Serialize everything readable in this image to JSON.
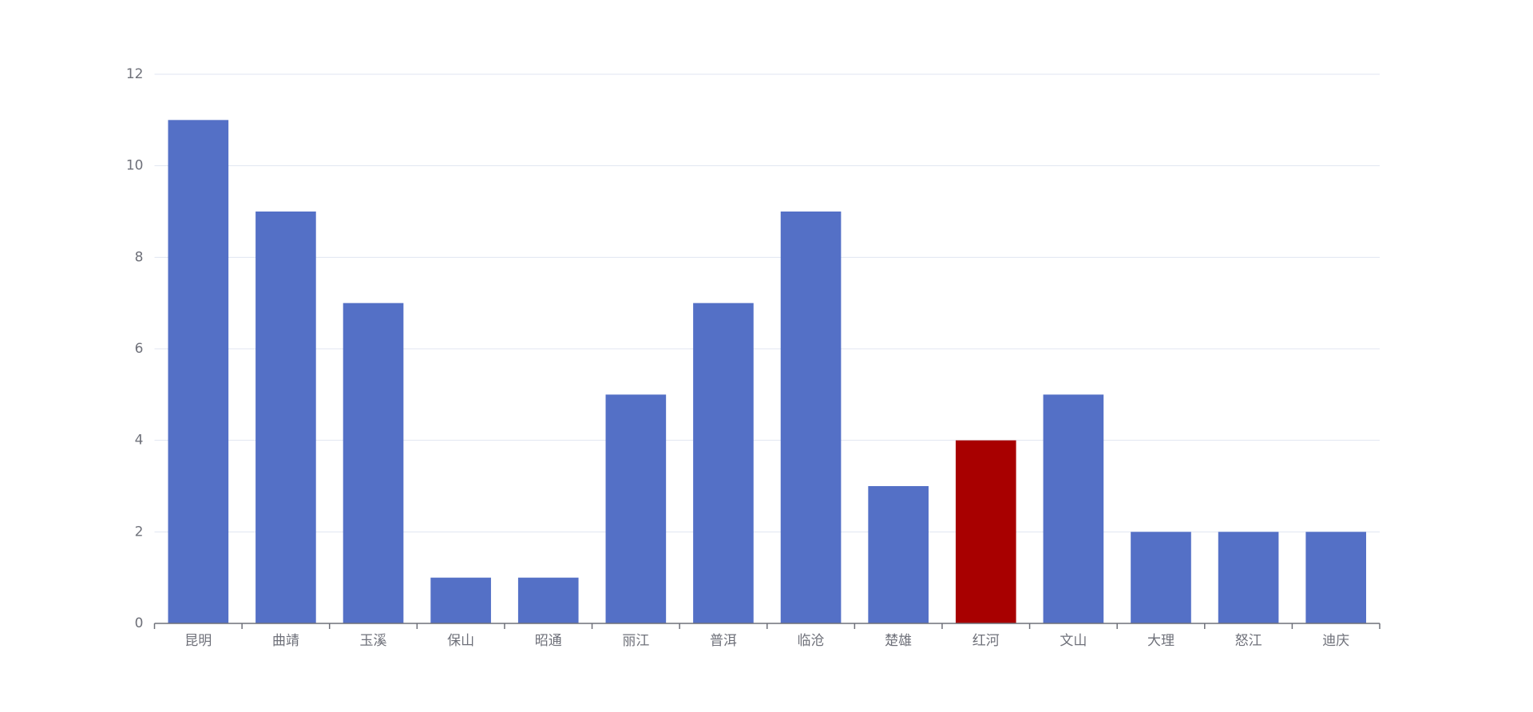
{
  "chart_data": {
    "type": "bar",
    "categories": [
      "昆明",
      "曲靖",
      "玉溪",
      "保山",
      "昭通",
      "丽江",
      "普洱",
      "临沧",
      "楚雄",
      "红河",
      "文山",
      "大理",
      "怒江",
      "迪庆"
    ],
    "values": [
      11,
      9,
      7,
      1,
      1,
      5,
      7,
      9,
      3,
      4,
      5,
      2,
      2,
      2
    ],
    "colors": [
      "#5470c6",
      "#5470c6",
      "#5470c6",
      "#5470c6",
      "#5470c6",
      "#5470c6",
      "#5470c6",
      "#5470c6",
      "#5470c6",
      "#a80000",
      "#5470c6",
      "#5470c6",
      "#5470c6",
      "#5470c6"
    ],
    "ylim": [
      0,
      12
    ],
    "yticks": [
      0,
      2,
      4,
      6,
      8,
      10,
      12
    ],
    "grid": true
  }
}
